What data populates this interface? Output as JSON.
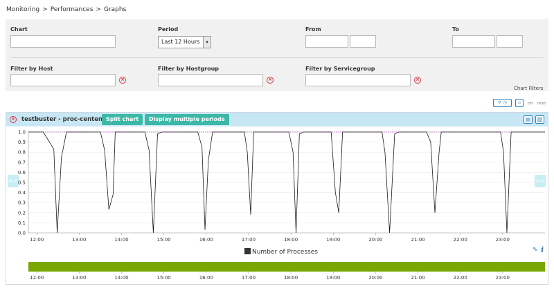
{
  "breadcrumb": [
    "Monitoring",
    "Performances",
    "Graphs"
  ],
  "breadcrumb_sep": ">",
  "filters": {
    "chart_label": "Chart",
    "chart_value": "",
    "period_label": "Period",
    "period_value": "Last 12 Hours",
    "from_label": "From",
    "to_label": "To",
    "host_label": "Filter by Host",
    "hostgroup_label": "Filter by Hostgroup",
    "servicegroup_label": "Filter by Servicegroup",
    "clear_glyph": "×",
    "select_arrow_glyph": "▾"
  },
  "chart_filters_link": "Chart Filters",
  "toolbar": {
    "refresh_glyph": "⟳",
    "timer_glyph": "◷",
    "layout_single_glyph": "▫",
    "layout_double_glyph": "▫▫",
    "layout_triple_glyph": "▫▫▫"
  },
  "panel": {
    "close_glyph": "×",
    "title": "testbuster - proc-centengine",
    "split_label": "Split chart",
    "multi_label": "Display multiple periods",
    "csv_glyph": "▤",
    "image_glyph": "▨",
    "prev_glyph": "<<",
    "next_glyph": ">>",
    "edit_glyph": "✎",
    "info_glyph": "i"
  },
  "colors": {
    "accent": "#3bb8a6",
    "header": "#c8e7f5",
    "line": "#1a1a1a",
    "threshold": "#c88ad0",
    "navigator": "#7aa700"
  },
  "chart_data": {
    "type": "line",
    "x_ticks": [
      "12:00",
      "13:00",
      "14:00",
      "15:00",
      "16:00",
      "17:00",
      "18:00",
      "19:00",
      "20:00",
      "21:00",
      "22:00",
      "23:00"
    ],
    "y_ticks": [
      "0.0",
      "0.1",
      "0.2",
      "0.3",
      "0.4",
      "0.5",
      "0.6",
      "0.7",
      "0.8",
      "0.9",
      "1.0"
    ],
    "ylim": [
      0,
      1
    ],
    "xlim_hours": [
      11.8,
      24.0
    ],
    "series": [
      {
        "name": "Number of Processes",
        "points": [
          [
            11.8,
            1
          ],
          [
            12.15,
            1
          ],
          [
            12.4,
            0.83
          ],
          [
            12.48,
            0
          ],
          [
            12.58,
            0.75
          ],
          [
            12.7,
            1
          ],
          [
            13.5,
            1
          ],
          [
            13.6,
            0.82
          ],
          [
            13.7,
            0.23
          ],
          [
            13.8,
            0.38
          ],
          [
            13.85,
            1
          ],
          [
            14.55,
            1
          ],
          [
            14.65,
            0.82
          ],
          [
            14.75,
            0
          ],
          [
            14.85,
            0.98
          ],
          [
            14.95,
            1
          ],
          [
            15.8,
            1
          ],
          [
            15.9,
            0.85
          ],
          [
            15.97,
            0.03
          ],
          [
            16.05,
            0.72
          ],
          [
            16.15,
            1
          ],
          [
            16.9,
            1
          ],
          [
            16.97,
            0.8
          ],
          [
            17.05,
            0.18
          ],
          [
            17.12,
            1
          ],
          [
            17.95,
            1
          ],
          [
            18.05,
            0.8
          ],
          [
            18.12,
            0
          ],
          [
            18.2,
            0.98
          ],
          [
            18.3,
            1
          ],
          [
            18.95,
            1
          ],
          [
            19.05,
            0.4
          ],
          [
            19.13,
            0.2
          ],
          [
            19.22,
            1
          ],
          [
            20.15,
            1
          ],
          [
            20.22,
            0.8
          ],
          [
            20.33,
            0
          ],
          [
            20.45,
            0.98
          ],
          [
            20.55,
            1
          ],
          [
            21.2,
            1
          ],
          [
            21.3,
            0.9
          ],
          [
            21.4,
            0.2
          ],
          [
            21.5,
            0.8
          ],
          [
            21.55,
            1
          ],
          [
            22.95,
            1
          ],
          [
            23.02,
            0.8
          ],
          [
            23.1,
            0
          ],
          [
            23.2,
            1
          ],
          [
            24.0,
            1
          ]
        ]
      }
    ]
  }
}
